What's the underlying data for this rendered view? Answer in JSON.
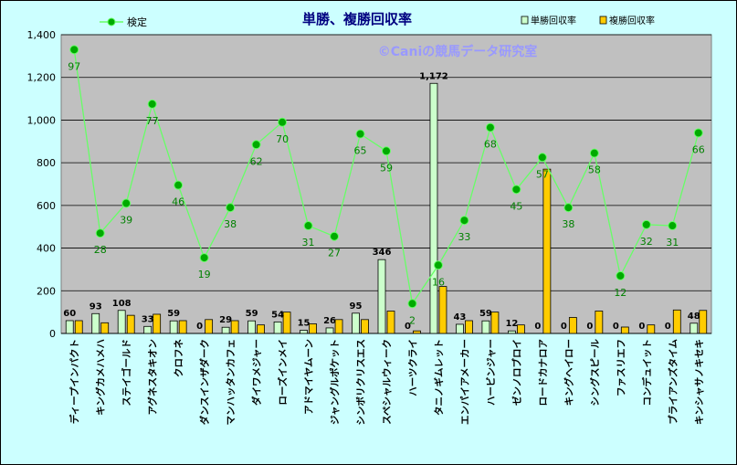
{
  "chart_data": {
    "type": "bar",
    "title": "単勝、複勝回収率",
    "watermark": "©Caniの競馬データ研究室",
    "ylim": [
      0,
      1400
    ],
    "yticks": [
      0,
      200,
      400,
      600,
      800,
      1000,
      1200,
      1400
    ],
    "ytick_labels": [
      "0",
      "200",
      "400",
      "600",
      "800",
      "1,000",
      "1,200",
      "1,400"
    ],
    "grid": true,
    "legend_placement": "top",
    "colors": {
      "plot_bg": "#c0c0c0",
      "frame_bg": "#ccffff",
      "tansho": "#ccffcc",
      "fukusho": "#ffcc00",
      "kentei_line": "#66ff66",
      "kentei_marker": "#00aa00",
      "label_green": "#008000",
      "title": "#000080",
      "watermark": "#9999ff"
    },
    "categories": [
      "ディープインパクト",
      "キングカメハメハ",
      "ステイゴールド",
      "アグネスタキオン",
      "クロフネ",
      "ダンスインザダーク",
      "マンハッタンカフェ",
      "ダイワメジャー",
      "ローズインメイ",
      "アドマイヤムーン",
      "ジャングルポケット",
      "シンボリクリスエス",
      "スペシャルウィーク",
      "ハーツクライ",
      "タニノギムレット",
      "エンパイアメーカー",
      "ハービンジャー",
      "ゼンノロブロイ",
      "ロードカナロア",
      "キングヘイロー",
      "シングスピール",
      "ファスリエフ",
      "コンデュイット",
      "ブライアンズタイム",
      "キンシャサノキセキ"
    ],
    "series": [
      {
        "name": "単勝回収率",
        "kind": "bar",
        "values": [
          60,
          93,
          108,
          33,
          59,
          0,
          29,
          59,
          54,
          15,
          26,
          95,
          346,
          0,
          1172,
          43,
          59,
          12,
          0,
          0,
          0,
          0,
          0,
          0,
          48
        ]
      },
      {
        "name": "複勝回収率",
        "kind": "bar",
        "values": [
          60,
          50,
          85,
          90,
          60,
          65,
          60,
          40,
          100,
          45,
          65,
          65,
          105,
          12,
          220,
          60,
          100,
          40,
          770,
          75,
          105,
          30,
          40,
          110,
          108
        ]
      },
      {
        "name": "検定",
        "kind": "line",
        "values": [
          1330,
          470,
          610,
          1075,
          695,
          355,
          590,
          885,
          990,
          505,
          455,
          935,
          855,
          140,
          320,
          530,
          965,
          675,
          825,
          590,
          845,
          270,
          510,
          505,
          940
        ],
        "labels": [
          "97",
          "28",
          "39",
          "77",
          "46",
          "19",
          "38",
          "62",
          "70",
          "31",
          "27",
          "65",
          "59",
          "2",
          "16",
          "33",
          "68",
          "45",
          "57",
          "38",
          "58",
          "12",
          "32",
          "31",
          "66"
        ]
      }
    ],
    "tansho_labels": [
      "60",
      "93",
      "108",
      "33",
      "59",
      "0",
      "29",
      "59",
      "54",
      "15",
      "26",
      "95",
      "346",
      "0",
      "1,172",
      "43",
      "59",
      "12",
      "0",
      "0",
      "0",
      "0",
      "0",
      "0",
      "48"
    ]
  }
}
